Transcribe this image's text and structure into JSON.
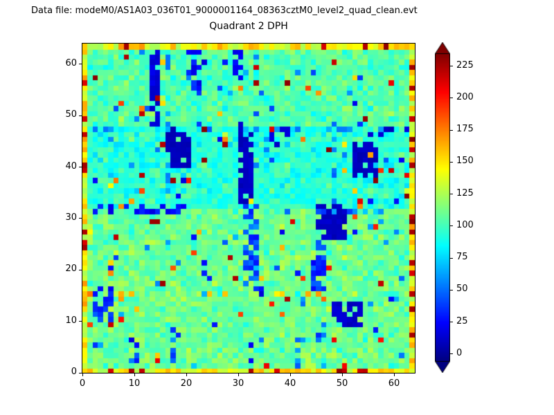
{
  "header": {
    "data_file_label": "Data file: modeM0/AS1A03_036T01_9000001164_08363cztM0_level2_quad_clean.evt"
  },
  "chart_data": {
    "type": "heatmap",
    "title": "Quadrant 2 DPH",
    "xlabel": "",
    "ylabel": "",
    "grid": {
      "nx": 64,
      "ny": 64
    },
    "xlim": [
      0,
      64
    ],
    "ylim": [
      0,
      64
    ],
    "xticks": [
      0,
      10,
      20,
      30,
      40,
      50,
      60
    ],
    "yticks": [
      0,
      10,
      20,
      30,
      40,
      50,
      60
    ],
    "colormap": "jet",
    "vmin": -6,
    "vmax": 235,
    "colorbar": {
      "ticks": [
        0,
        25,
        50,
        75,
        100,
        125,
        150,
        175,
        200,
        225
      ],
      "extend": "both",
      "position": "right"
    },
    "seed": 42,
    "background": {
      "mean": 110,
      "noise": 14
    },
    "bands": [
      {
        "y0": 32,
        "y1": 48,
        "delta": -16
      },
      {
        "y0": 48,
        "y1": 64,
        "delta": -6
      }
    ],
    "edge": {
      "base": 122,
      "span": 48,
      "red_prob": 0.1,
      "red_base": 212,
      "red_span": 22
    },
    "speckles": {
      "hot_prob": 0.02,
      "hot_min": 145,
      "hot_span": 90,
      "cold_prob": 0.025,
      "cold_min": 15,
      "cold_span": 60,
      "red_prob": 0.005,
      "red_min": 218,
      "red_span": 15
    },
    "features": [
      {
        "x0": 13,
        "x1": 15,
        "y0": 48,
        "y1": 64,
        "value": 15,
        "prob": 0.7
      },
      {
        "x0": 16,
        "x1": 21,
        "y0": 40,
        "y1": 48,
        "value": 8,
        "prob": 0.85
      },
      {
        "x0": 20,
        "x1": 23,
        "y0": 54,
        "y1": 63,
        "value": 28,
        "prob": 0.5
      },
      {
        "x0": 30,
        "x1": 33,
        "y0": 33,
        "y1": 49,
        "value": 10,
        "prob": 0.8
      },
      {
        "x0": 31,
        "x1": 34,
        "y0": 16,
        "y1": 33,
        "value": 45,
        "prob": 0.5
      },
      {
        "x0": 29,
        "x1": 31,
        "y0": 56,
        "y1": 64,
        "value": 22,
        "prob": 0.45
      },
      {
        "x0": 44,
        "x1": 47,
        "y0": 16,
        "y1": 26,
        "value": 35,
        "prob": 0.55
      },
      {
        "x0": 45,
        "x1": 51,
        "y0": 26,
        "y1": 33,
        "value": 10,
        "prob": 0.8
      },
      {
        "x0": 52,
        "x1": 57,
        "y0": 38,
        "y1": 45,
        "value": 9,
        "prob": 0.8
      },
      {
        "x0": 48,
        "x1": 54,
        "y0": 9,
        "y1": 14,
        "value": 12,
        "prob": 0.7
      },
      {
        "x0": 45,
        "x1": 47,
        "y0": 0,
        "y1": 12,
        "value": 50,
        "prob": 0.5
      },
      {
        "x0": 2,
        "x1": 6,
        "y0": 10,
        "y1": 17,
        "value": 35,
        "prob": 0.5
      },
      {
        "x0": 0,
        "x1": 20,
        "y0": 31,
        "y1": 33,
        "value": 25,
        "prob": 0.55
      },
      {
        "x0": 38,
        "x1": 60,
        "y0": 31,
        "y1": 32,
        "value": 55,
        "prob": 0.4
      },
      {
        "x0": 0,
        "x1": 64,
        "y0": 47,
        "y1": 48,
        "value": 70,
        "prob": 0.5
      },
      {
        "x0": 36,
        "x1": 40,
        "y0": 44,
        "y1": 48,
        "value": 15,
        "prob": 0.5
      },
      {
        "x0": 55,
        "x1": 60,
        "y0": 46,
        "y1": 48,
        "value": 12,
        "prob": 0.55
      },
      {
        "x0": 9,
        "x1": 11,
        "y0": 0,
        "y1": 6,
        "value": 40,
        "prob": 0.5
      },
      {
        "x0": 17,
        "x1": 19,
        "y0": 2,
        "y1": 10,
        "value": 45,
        "prob": 0.4
      },
      {
        "x0": 23,
        "x1": 25,
        "y0": 17,
        "y1": 22,
        "value": 30,
        "prob": 0.45
      },
      {
        "x0": 16,
        "x1": 17,
        "y0": 32,
        "y1": 64,
        "value": 70,
        "prob": 0.4
      },
      {
        "x0": 48,
        "x1": 49,
        "y0": 32,
        "y1": 48,
        "value": 75,
        "prob": 0.35
      },
      {
        "x0": 41,
        "x1": 43,
        "y0": 0,
        "y1": 8,
        "value": 45,
        "prob": 0.4
      },
      {
        "x0": 5,
        "x1": 7,
        "y0": 40,
        "y1": 46,
        "value": 55,
        "prob": 0.35
      },
      {
        "x0": 34,
        "x1": 39,
        "y0": 46,
        "y1": 48,
        "value": 200,
        "prob": 0.35
      },
      {
        "x0": 62,
        "x1": 64,
        "y0": 33,
        "y1": 41,
        "value": 210,
        "prob": 0.5
      },
      {
        "x0": 0,
        "x1": 2,
        "y0": 20,
        "y1": 28,
        "value": 150,
        "prob": 0.5
      },
      {
        "x0": 0,
        "x1": 64,
        "y0": 15,
        "y1": 16,
        "value": 128,
        "prob": 0.35
      },
      {
        "x0": 24,
        "x1": 28,
        "y0": 46,
        "y1": 47,
        "value": 190,
        "prob": 0.3
      }
    ]
  }
}
